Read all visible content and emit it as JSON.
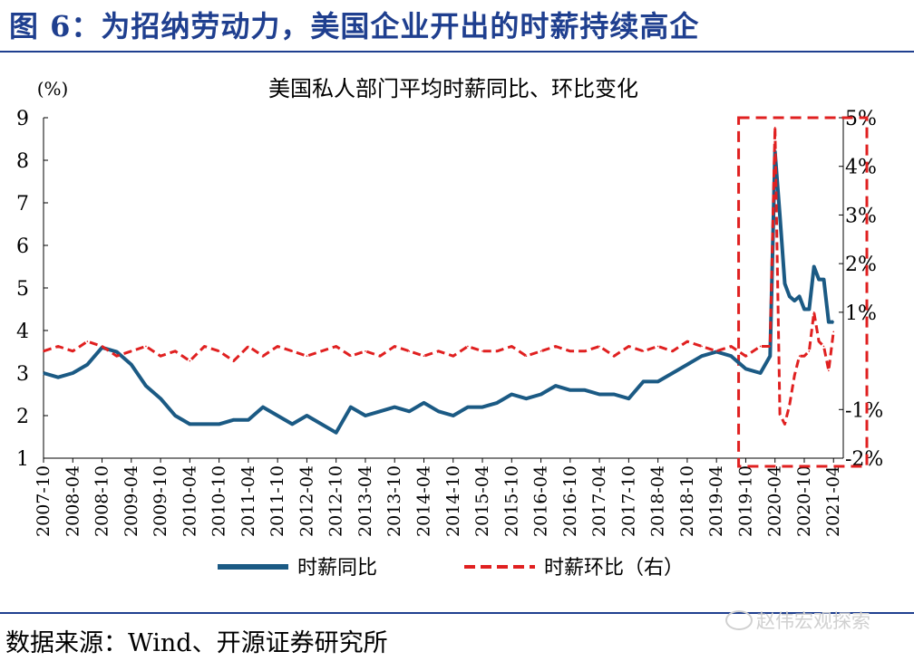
{
  "figure": {
    "title": "图 6：为招纳劳动力，美国企业开出的时薪持续高企",
    "source": "数据来源：Wind、开源证券研究所",
    "watermark": "赵伟宏观探索",
    "watermark_icon": "wechat-icon"
  },
  "chart_data": {
    "type": "line",
    "title": "美国私人部门平均时薪同比、环比变化",
    "left_axis": {
      "unit_label": "(%)",
      "ylim": [
        1,
        9
      ],
      "ticks": [
        1,
        2,
        3,
        4,
        5,
        6,
        7,
        8,
        9
      ]
    },
    "right_axis": {
      "ylim": [
        -2,
        5
      ],
      "ticks": [
        -2,
        -1,
        1,
        2,
        3,
        4,
        5
      ],
      "tick_labels": [
        "-2%",
        "-1%",
        "1%",
        "2%",
        "3%",
        "4%",
        "5%"
      ]
    },
    "x_tick_labels": [
      "2007-10",
      "2008-04",
      "2008-10",
      "2009-04",
      "2009-10",
      "2010-04",
      "2010-10",
      "2011-04",
      "2011-10",
      "2012-04",
      "2012-10",
      "2013-04",
      "2013-10",
      "2014-04",
      "2014-10",
      "2015-04",
      "2015-10",
      "2016-04",
      "2016-10",
      "2017-04",
      "2017-10",
      "2018-04",
      "2018-10",
      "2019-04",
      "2019-10",
      "2020-04",
      "2020-10",
      "2021-04"
    ],
    "legend": [
      "时薪同比",
      "时薪环比（右）"
    ],
    "legend_placement": "bottom",
    "series": [
      {
        "name": "时薪同比",
        "axis": "left",
        "color": "#1b5a84",
        "style": "solid",
        "x": [
          "2007-10",
          "2008-01",
          "2008-04",
          "2008-07",
          "2008-10",
          "2009-01",
          "2009-04",
          "2009-07",
          "2009-10",
          "2010-01",
          "2010-04",
          "2010-07",
          "2010-10",
          "2011-01",
          "2011-04",
          "2011-07",
          "2011-10",
          "2012-01",
          "2012-04",
          "2012-07",
          "2012-10",
          "2013-01",
          "2013-04",
          "2013-07",
          "2013-10",
          "2014-01",
          "2014-04",
          "2014-07",
          "2014-10",
          "2015-01",
          "2015-04",
          "2015-07",
          "2015-10",
          "2016-01",
          "2016-04",
          "2016-07",
          "2016-10",
          "2017-01",
          "2017-04",
          "2017-07",
          "2017-10",
          "2018-01",
          "2018-04",
          "2018-07",
          "2018-10",
          "2019-01",
          "2019-04",
          "2019-07",
          "2019-10",
          "2020-01",
          "2020-03",
          "2020-04",
          "2020-05",
          "2020-06",
          "2020-07",
          "2020-08",
          "2020-09",
          "2020-10",
          "2020-11",
          "2020-12",
          "2021-01",
          "2021-02",
          "2021-03",
          "2021-04"
        ],
        "values": [
          3.0,
          2.9,
          3.0,
          3.2,
          3.6,
          3.5,
          3.2,
          2.7,
          2.4,
          2.0,
          1.8,
          1.8,
          1.8,
          1.9,
          1.9,
          2.2,
          2.0,
          1.8,
          2.0,
          1.8,
          1.6,
          2.2,
          2.0,
          2.1,
          2.2,
          2.1,
          2.3,
          2.1,
          2.0,
          2.2,
          2.2,
          2.3,
          2.5,
          2.4,
          2.5,
          2.7,
          2.6,
          2.6,
          2.5,
          2.5,
          2.4,
          2.8,
          2.8,
          3.0,
          3.2,
          3.4,
          3.5,
          3.4,
          3.1,
          3.0,
          3.4,
          8.2,
          6.7,
          5.1,
          4.8,
          4.7,
          4.8,
          4.5,
          4.5,
          5.5,
          5.2,
          5.2,
          4.2,
          4.2
        ]
      },
      {
        "name": "时薪环比（右）",
        "axis": "right",
        "color": "#e02020",
        "style": "dashed",
        "x": [
          "2007-10",
          "2008-01",
          "2008-04",
          "2008-07",
          "2008-10",
          "2009-01",
          "2009-04",
          "2009-07",
          "2009-10",
          "2010-01",
          "2010-04",
          "2010-07",
          "2010-10",
          "2011-01",
          "2011-04",
          "2011-07",
          "2011-10",
          "2012-01",
          "2012-04",
          "2012-07",
          "2012-10",
          "2013-01",
          "2013-04",
          "2013-07",
          "2013-10",
          "2014-01",
          "2014-04",
          "2014-07",
          "2014-10",
          "2015-01",
          "2015-04",
          "2015-07",
          "2015-10",
          "2016-01",
          "2016-04",
          "2016-07",
          "2016-10",
          "2017-01",
          "2017-04",
          "2017-07",
          "2017-10",
          "2018-01",
          "2018-04",
          "2018-07",
          "2018-10",
          "2019-01",
          "2019-04",
          "2019-07",
          "2019-10",
          "2020-01",
          "2020-03",
          "2020-04",
          "2020-05",
          "2020-06",
          "2020-07",
          "2020-08",
          "2020-09",
          "2020-10",
          "2020-11",
          "2020-12",
          "2021-01",
          "2021-02",
          "2021-03",
          "2021-04"
        ],
        "values": [
          0.2,
          0.3,
          0.2,
          0.4,
          0.3,
          0.1,
          0.2,
          0.3,
          0.1,
          0.2,
          0.0,
          0.3,
          0.2,
          0.0,
          0.3,
          0.1,
          0.3,
          0.2,
          0.1,
          0.2,
          0.3,
          0.1,
          0.2,
          0.1,
          0.3,
          0.2,
          0.1,
          0.2,
          0.1,
          0.3,
          0.2,
          0.2,
          0.3,
          0.1,
          0.2,
          0.3,
          0.2,
          0.2,
          0.3,
          0.1,
          0.3,
          0.2,
          0.3,
          0.2,
          0.4,
          0.3,
          0.2,
          0.3,
          0.1,
          0.3,
          0.3,
          4.8,
          -1.1,
          -1.3,
          -0.9,
          -0.3,
          0.1,
          0.1,
          0.2,
          1.0,
          0.4,
          0.3,
          -0.2,
          0.6
        ]
      }
    ],
    "highlight_box": {
      "color": "#e02020",
      "style": "dashed",
      "x_start": "2020-01",
      "x_end": "2021-04"
    }
  }
}
